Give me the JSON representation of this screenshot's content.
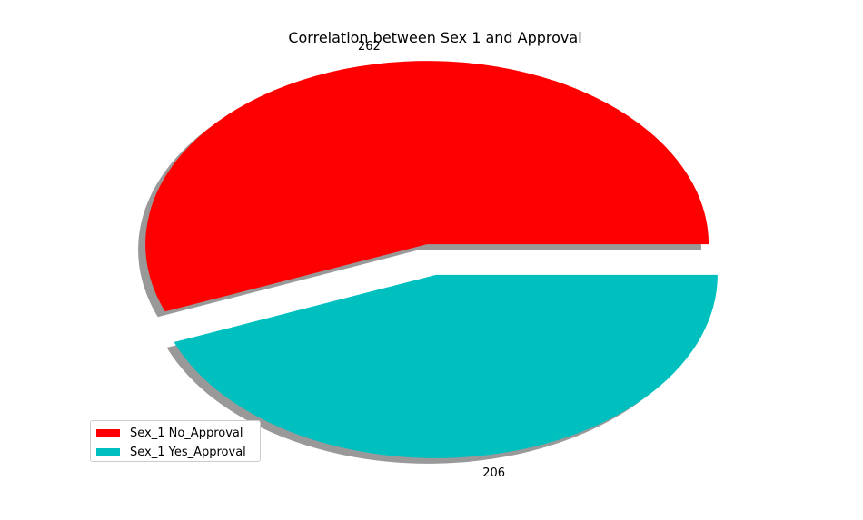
{
  "chart_data": {
    "type": "pie",
    "title": "Correlation between Sex 1 and Approval",
    "slices": [
      {
        "label": "Sex_1 No_Approval",
        "value": 262,
        "color": "#ff0000"
      },
      {
        "label": "Sex_1 Yes_Approval",
        "value": 206,
        "color": "#00bfbf"
      }
    ],
    "shadow": true,
    "exploded": true,
    "legend_position": "lower-left",
    "data_labels": [
      "262",
      "206"
    ]
  }
}
